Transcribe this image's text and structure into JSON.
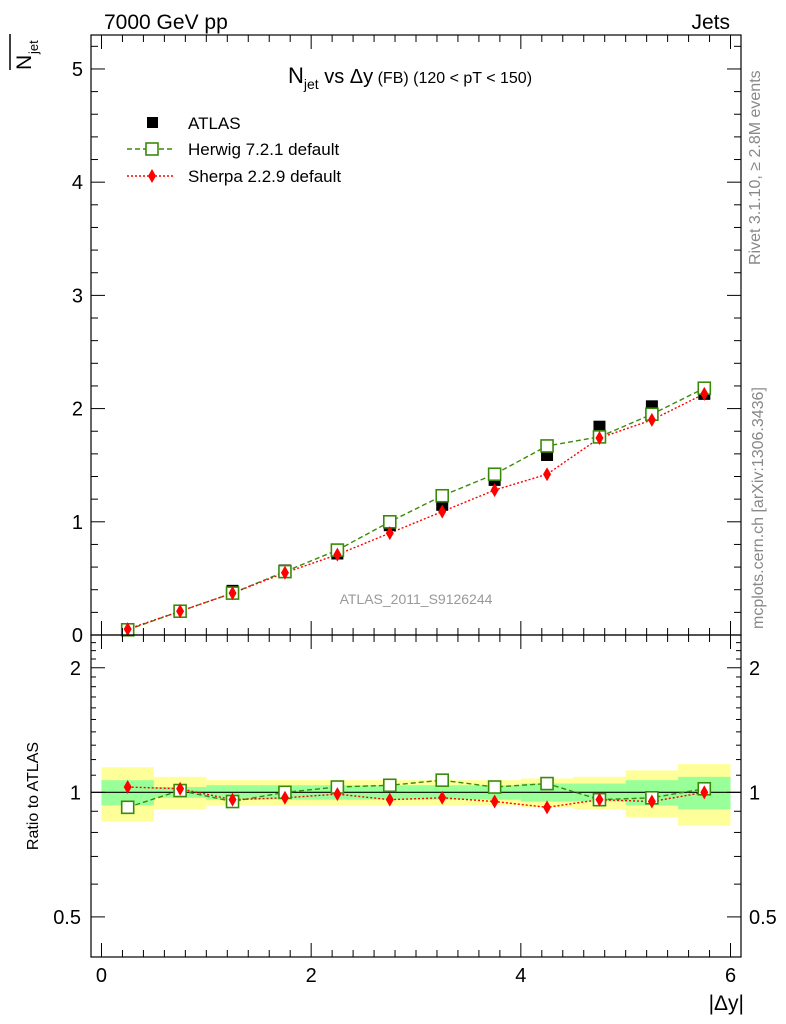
{
  "header": {
    "energy_label": "7000 GeV pp",
    "process_label": "Jets",
    "title_main": "N",
    "title_sub": "jet",
    "title_vs": " vs ",
    "title_delta": "Δy",
    "title_fb": " (FB)",
    "title_range": " (120 < pT < 150)",
    "ylabel_main": "N",
    "ylabel_sub": "jet",
    "ratio_ylabel": "Ratio to ATLAS",
    "xlabel": "|Δy|",
    "watermark": "ATLAS_2011_S9126244",
    "side_rivet": "Rivet 3.1.10, ≥ 2.8M events",
    "side_mcplots": "mcplots.cern.ch [arXiv:1306.3436]"
  },
  "legend": [
    {
      "label": "ATLAS",
      "style": "data"
    },
    {
      "label": "Herwig 7.2.1 default",
      "style": "herwig"
    },
    {
      "label": "Sherpa 2.2.9 default",
      "style": "sherpa"
    }
  ],
  "colors": {
    "data": "#000000",
    "herwig": "#3a8a0a",
    "sherpa": "#ff0000",
    "band_inner": "#99ff99",
    "band_outer": "#ffff99"
  },
  "chart_data": {
    "type": "scatter",
    "x": [
      0.25,
      0.75,
      1.25,
      1.75,
      2.25,
      2.75,
      3.25,
      3.75,
      4.25,
      4.75,
      5.25,
      5.75
    ],
    "bin_edges": [
      0,
      0.5,
      1.0,
      1.5,
      2.0,
      2.5,
      3.0,
      3.5,
      4.0,
      4.5,
      5.0,
      5.5,
      6.0
    ],
    "xlim": [
      -0.1,
      6.1
    ],
    "xticks": [
      0,
      2,
      4,
      6
    ],
    "main": {
      "ylim": [
        0,
        5.3
      ],
      "yticks": [
        0,
        1,
        2,
        3,
        4,
        5
      ],
      "series": [
        {
          "name": "ATLAS",
          "key": "data",
          "values": [
            0.05,
            0.21,
            0.39,
            0.57,
            0.72,
            0.97,
            1.15,
            1.37,
            1.59,
            1.84,
            2.02,
            2.13
          ]
        },
        {
          "name": "Herwig 7.2.1 default",
          "key": "herwig",
          "values": [
            0.046,
            0.21,
            0.37,
            0.56,
            0.75,
            1.0,
            1.23,
            1.42,
            1.67,
            1.75,
            1.95,
            2.18
          ]
        },
        {
          "name": "Sherpa 2.2.9 default",
          "key": "sherpa",
          "values": [
            0.052,
            0.21,
            0.37,
            0.55,
            0.71,
            0.9,
            1.09,
            1.28,
            1.42,
            1.74,
            1.9,
            2.13
          ]
        }
      ]
    },
    "ratio": {
      "ylim": [
        0.4,
        2.4
      ],
      "yticks": [
        0.5,
        1,
        2
      ],
      "log": true,
      "band_inner": [
        0.07,
        0.03,
        0.04,
        0.04,
        0.04,
        0.04,
        0.04,
        0.04,
        0.05,
        0.05,
        0.07,
        0.09
      ],
      "band_outer": [
        0.15,
        0.09,
        0.07,
        0.07,
        0.07,
        0.07,
        0.07,
        0.07,
        0.08,
        0.09,
        0.13,
        0.17
      ],
      "series": [
        {
          "name": "Herwig 7.2.1 default",
          "key": "herwig",
          "values": [
            0.92,
            1.01,
            0.95,
            1.0,
            1.03,
            1.04,
            1.07,
            1.03,
            1.05,
            0.96,
            0.97,
            1.02
          ]
        },
        {
          "name": "Sherpa 2.2.9 default",
          "key": "sherpa",
          "values": [
            1.03,
            1.02,
            0.96,
            0.97,
            0.99,
            0.96,
            0.97,
            0.95,
            0.92,
            0.96,
            0.95,
            1.0
          ]
        }
      ]
    }
  }
}
